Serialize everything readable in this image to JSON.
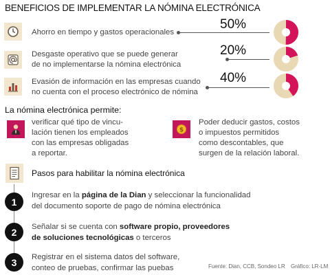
{
  "title": "BENEFICIOS DE IMPLEMENTAR LA NÓMINA ELECTRÓNICA",
  "chart_data": {
    "type": "pie",
    "items": [
      {
        "icon": "clock-icon",
        "lines": [
          "Ahorro en tiempo y gastos operacionales"
        ],
        "value": 50,
        "label": "50%"
      },
      {
        "icon": "at-sign-icon",
        "lines": [
          "Desgaste operativo que se puede generar",
          "de no implementarse la nómina electrónica"
        ],
        "value": 20,
        "label": "20%"
      },
      {
        "icon": "bar-chart-icon",
        "lines": [
          "Evasión de información en las empresas cuando",
          "no cuenta con el proceso electrónico de nómina"
        ],
        "value": 40,
        "label": "40%"
      }
    ],
    "colors": {
      "value": "#d4145a",
      "remainder": "#e9d8b4"
    }
  },
  "permite": {
    "heading": "La nómina electrónica permite:",
    "items": [
      {
        "icon": "person-icon",
        "lines": [
          "verificar qué tipo de vincu-",
          "lación tienen los empleados",
          "con las empresas obligadas",
          "a reportar."
        ]
      },
      {
        "icon": "coin-icon",
        "lines": [
          "Poder deducir gastos, costos",
          "o impuestos permitidos",
          "como descontables, que",
          "surgen de la relación laboral."
        ]
      }
    ]
  },
  "pasos": {
    "icon": "document-icon",
    "heading": "Pasos para habilitar la nómina electrónica",
    "steps": [
      {
        "number": "1",
        "line1_a": "Ingresar en la ",
        "line1_b": "página de la Dian",
        "line1_c": " y seleccionar la funcionalidad",
        "line2": "del documento soporte de pago de nómina electrónica"
      },
      {
        "number": "2",
        "line1_a": "Señalar si se cuenta con ",
        "line1_b": "software propio, proveedores",
        "line2_a": "de soluciones tecnológicas",
        "line2_b": " o terceros"
      },
      {
        "number": "3",
        "line1": "Registrar en el sistema datos del software,",
        "line2": "conteo de pruebas, confirmar las puebas"
      }
    ]
  },
  "footer": {
    "source": "Fuente: Dian, CCB, Sondeo LR",
    "credit": "Gráfico: LR-LM"
  }
}
